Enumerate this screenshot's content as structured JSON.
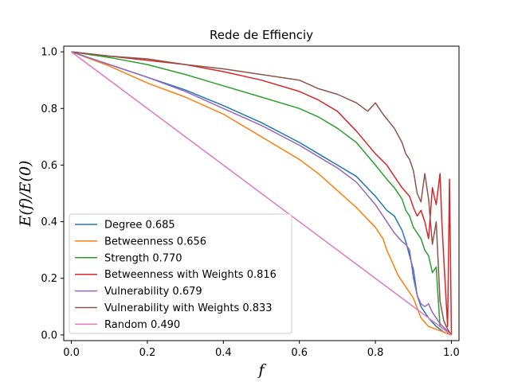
{
  "chart_data": {
    "type": "line",
    "title": "Rede de Effienciy",
    "xlabel": "f",
    "ylabel": "E(f)/E(0)",
    "xlim": [
      -0.02,
      1.02
    ],
    "ylim": [
      -0.02,
      1.02
    ],
    "xticks": [
      "0.0",
      "0.2",
      "0.4",
      "0.6",
      "0.8",
      "1.0"
    ],
    "yticks": [
      "0.0",
      "0.2",
      "0.4",
      "0.6",
      "0.8",
      "1.0"
    ],
    "grid": false,
    "legend_position": "lower-left",
    "series": [
      {
        "name": "Degree 0.685",
        "color": "#1f77b4",
        "x": [
          0,
          0.1,
          0.2,
          0.3,
          0.4,
          0.5,
          0.6,
          0.65,
          0.7,
          0.75,
          0.8,
          0.83,
          0.85,
          0.87,
          0.88,
          0.9,
          0.91,
          0.92,
          0.94,
          0.96,
          0.98,
          1.0
        ],
        "y": [
          1.0,
          0.955,
          0.91,
          0.865,
          0.81,
          0.75,
          0.68,
          0.64,
          0.6,
          0.56,
          0.49,
          0.44,
          0.42,
          0.37,
          0.33,
          0.23,
          0.14,
          0.1,
          0.06,
          0.03,
          0.01,
          0.0
        ]
      },
      {
        "name": "Betweenness 0.656",
        "color": "#ff7f0e",
        "x": [
          0,
          0.1,
          0.2,
          0.3,
          0.4,
          0.5,
          0.55,
          0.6,
          0.65,
          0.7,
          0.75,
          0.8,
          0.82,
          0.83,
          0.84,
          0.86,
          0.88,
          0.9,
          0.92,
          0.94,
          0.96,
          1.0
        ],
        "y": [
          1.0,
          0.95,
          0.89,
          0.84,
          0.78,
          0.7,
          0.66,
          0.62,
          0.57,
          0.51,
          0.45,
          0.38,
          0.34,
          0.3,
          0.27,
          0.21,
          0.17,
          0.13,
          0.06,
          0.03,
          0.02,
          0.0
        ]
      },
      {
        "name": "Strength 0.770",
        "color": "#2ca02c",
        "x": [
          0,
          0.1,
          0.2,
          0.3,
          0.4,
          0.5,
          0.6,
          0.65,
          0.7,
          0.75,
          0.8,
          0.83,
          0.85,
          0.87,
          0.88,
          0.89,
          0.9,
          0.92,
          0.93,
          0.94,
          0.95,
          0.96,
          0.97,
          1.0
        ],
        "y": [
          1.0,
          0.98,
          0.955,
          0.92,
          0.88,
          0.84,
          0.8,
          0.77,
          0.73,
          0.68,
          0.6,
          0.55,
          0.52,
          0.48,
          0.44,
          0.42,
          0.38,
          0.34,
          0.3,
          0.28,
          0.22,
          0.24,
          0.03,
          0.0
        ]
      },
      {
        "name": "Betweenness with Weights 0.816",
        "color": "#d62728",
        "x": [
          0,
          0.1,
          0.2,
          0.3,
          0.4,
          0.5,
          0.6,
          0.65,
          0.7,
          0.75,
          0.8,
          0.83,
          0.85,
          0.87,
          0.89,
          0.9,
          0.91,
          0.92,
          0.93,
          0.94,
          0.95,
          0.96,
          0.97,
          0.975,
          0.98,
          0.99,
          0.995,
          1.0
        ],
        "y": [
          1.0,
          0.985,
          0.97,
          0.955,
          0.93,
          0.9,
          0.86,
          0.83,
          0.79,
          0.72,
          0.64,
          0.6,
          0.56,
          0.52,
          0.49,
          0.45,
          0.42,
          0.44,
          0.4,
          0.34,
          0.52,
          0.46,
          0.57,
          0.4,
          0.27,
          0.03,
          0.55,
          0.0
        ]
      },
      {
        "name": "Vulnerability 0.679",
        "color": "#9467bd",
        "x": [
          0,
          0.1,
          0.2,
          0.3,
          0.4,
          0.5,
          0.6,
          0.65,
          0.7,
          0.75,
          0.8,
          0.83,
          0.85,
          0.87,
          0.88,
          0.89,
          0.9,
          0.91,
          0.92,
          0.93,
          0.94,
          0.95,
          0.97,
          1.0
        ],
        "y": [
          1.0,
          0.955,
          0.91,
          0.86,
          0.8,
          0.74,
          0.67,
          0.63,
          0.59,
          0.54,
          0.46,
          0.4,
          0.36,
          0.33,
          0.32,
          0.3,
          0.2,
          0.14,
          0.11,
          0.1,
          0.11,
          0.08,
          0.04,
          0.0
        ]
      },
      {
        "name": "Vulnerability with Weights 0.833",
        "color": "#8c564b",
        "x": [
          0,
          0.1,
          0.2,
          0.3,
          0.4,
          0.5,
          0.6,
          0.65,
          0.7,
          0.75,
          0.78,
          0.8,
          0.82,
          0.85,
          0.87,
          0.88,
          0.89,
          0.9,
          0.91,
          0.92,
          0.93,
          0.94,
          0.95,
          0.96,
          0.97,
          0.98,
          0.99,
          1.0
        ],
        "y": [
          1.0,
          0.985,
          0.975,
          0.955,
          0.94,
          0.92,
          0.9,
          0.87,
          0.85,
          0.82,
          0.79,
          0.82,
          0.78,
          0.73,
          0.68,
          0.64,
          0.62,
          0.58,
          0.5,
          0.47,
          0.57,
          0.48,
          0.32,
          0.4,
          0.12,
          0.05,
          0.02,
          0.0
        ]
      },
      {
        "name": "Random 0.490",
        "color": "#e377c2",
        "x": [
          0,
          0.98,
          1.0
        ],
        "y": [
          1.0,
          0.02,
          0.0
        ]
      }
    ]
  }
}
